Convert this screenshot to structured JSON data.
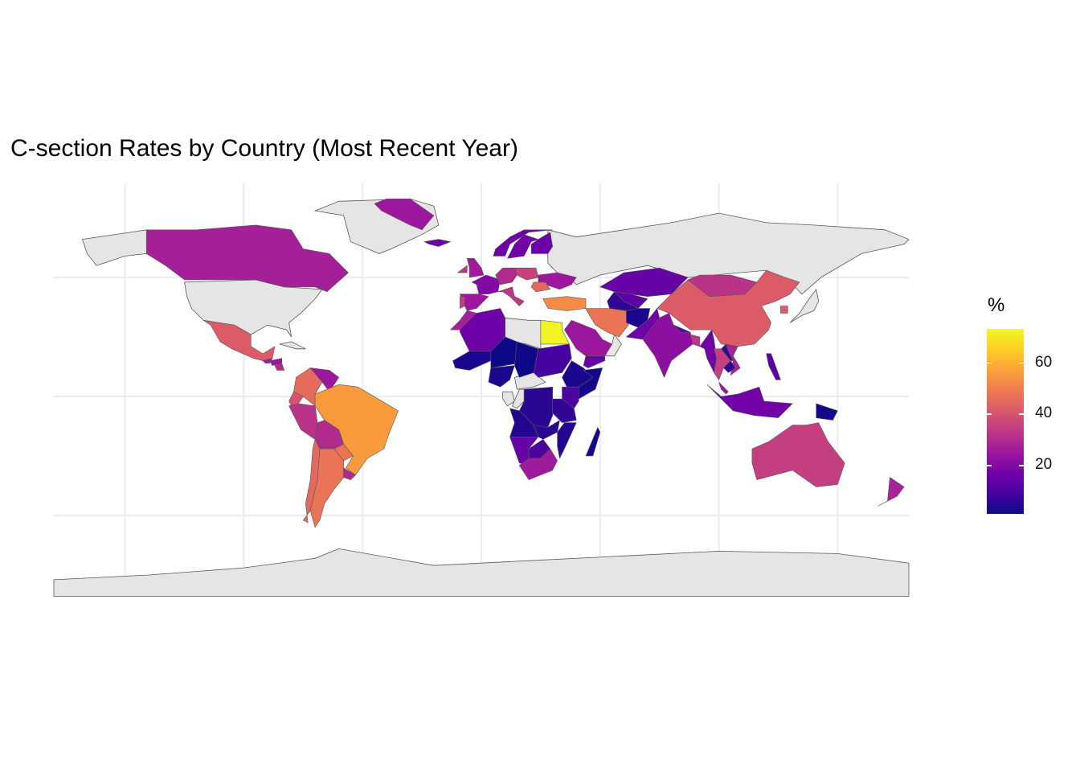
{
  "title": "C-section Rates by Country (Most Recent Year)",
  "legend": {
    "title": "%",
    "min": 1,
    "max": 73,
    "breaks": [
      20,
      40,
      60
    ],
    "break_labels": [
      "20",
      "40",
      "60"
    ],
    "colors": [
      "#0d0887",
      "#46039f",
      "#7201a8",
      "#9c179e",
      "#bd3786",
      "#d8576b",
      "#ed7953",
      "#fb9f3a",
      "#fdca26",
      "#f0f921"
    ]
  },
  "chart_data": {
    "type": "heatmap",
    "subtype": "choropleth-world-map",
    "title": "C-section Rates by Country (Most Recent Year)",
    "fill_label": "%",
    "projection": "equirectangular",
    "no_data_color": "#e5e5e5",
    "border_color": "#595959",
    "panel_grid": true,
    "legend_position": "right",
    "values_by_country": [
      {
        "country": "Canada",
        "value": 27
      },
      {
        "country": "Mexico",
        "value": 42
      },
      {
        "country": "Guatemala",
        "value": 26
      },
      {
        "country": "Honduras",
        "value": 24
      },
      {
        "country": "Nicaragua",
        "value": 30
      },
      {
        "country": "Colombia",
        "value": 46
      },
      {
        "country": "Venezuela",
        "value": 25
      },
      {
        "country": "Ecuador",
        "value": 40
      },
      {
        "country": "Peru",
        "value": 32
      },
      {
        "country": "Brazil",
        "value": 56
      },
      {
        "country": "Bolivia",
        "value": 30
      },
      {
        "country": "Chile",
        "value": 45
      },
      {
        "country": "Argentina",
        "value": 48
      },
      {
        "country": "Paraguay",
        "value": 48
      },
      {
        "country": "Uruguay",
        "value": 30
      },
      {
        "country": "Greenland",
        "value": 25
      },
      {
        "country": "Iceland",
        "value": 15
      },
      {
        "country": "Ireland",
        "value": 33
      },
      {
        "country": "United Kingdom",
        "value": 26
      },
      {
        "country": "Norway",
        "value": 16
      },
      {
        "country": "Sweden",
        "value": 17
      },
      {
        "country": "Finland",
        "value": 16
      },
      {
        "country": "France",
        "value": 20
      },
      {
        "country": "Spain",
        "value": 25
      },
      {
        "country": "Portugal",
        "value": 35
      },
      {
        "country": "Italy",
        "value": 33
      },
      {
        "country": "Germany",
        "value": 30
      },
      {
        "country": "Poland",
        "value": 36
      },
      {
        "country": "Ukraine",
        "value": 25
      },
      {
        "country": "Romania",
        "value": 45
      },
      {
        "country": "Turkey",
        "value": 53
      },
      {
        "country": "Morocco",
        "value": 27
      },
      {
        "country": "Algeria",
        "value": 16
      },
      {
        "country": "Egypt",
        "value": 72
      },
      {
        "country": "Mali",
        "value": 3
      },
      {
        "country": "Niger",
        "value": 1
      },
      {
        "country": "Chad",
        "value": 1
      },
      {
        "country": "Nigeria",
        "value": 3
      },
      {
        "country": "Sudan",
        "value": 9
      },
      {
        "country": "Ethiopia",
        "value": 3
      },
      {
        "country": "Somalia",
        "value": 2
      },
      {
        "country": "Kenya",
        "value": 10
      },
      {
        "country": "Tanzania",
        "value": 6
      },
      {
        "country": "DR Congo",
        "value": 5
      },
      {
        "country": "Angola",
        "value": 4
      },
      {
        "country": "Zambia",
        "value": 5
      },
      {
        "country": "Mozambique",
        "value": 4
      },
      {
        "country": "Madagascar",
        "value": 2
      },
      {
        "country": "Namibia",
        "value": 15
      },
      {
        "country": "Botswana",
        "value": 10
      },
      {
        "country": "South Africa",
        "value": 26
      },
      {
        "country": "Saudi Arabia",
        "value": 25
      },
      {
        "country": "Yemen",
        "value": 15
      },
      {
        "country": "Iran",
        "value": 48
      },
      {
        "country": "Kazakhstan",
        "value": 15
      },
      {
        "country": "Uzbekistan",
        "value": 13
      },
      {
        "country": "Turkmenistan",
        "value": 6
      },
      {
        "country": "Afghanistan",
        "value": 3
      },
      {
        "country": "Pakistan",
        "value": 16
      },
      {
        "country": "India",
        "value": 22
      },
      {
        "country": "Nepal",
        "value": 10
      },
      {
        "country": "Bangladesh",
        "value": 33
      },
      {
        "country": "Myanmar",
        "value": 17
      },
      {
        "country": "China",
        "value": 42
      },
      {
        "country": "Mongolia",
        "value": 32
      },
      {
        "country": "South Korea",
        "value": 42
      },
      {
        "country": "Thailand",
        "value": 35
      },
      {
        "country": "Vietnam",
        "value": 28
      },
      {
        "country": "Laos",
        "value": 6
      },
      {
        "country": "Cambodia",
        "value": 6
      },
      {
        "country": "Philippines",
        "value": 13
      },
      {
        "country": "Malaysia",
        "value": 25
      },
      {
        "country": "Indonesia",
        "value": 17
      },
      {
        "country": "Papua New Guinea",
        "value": 2
      },
      {
        "country": "Australia",
        "value": 35
      },
      {
        "country": "New Zealand",
        "value": 28
      }
    ],
    "no_data_countries": [
      "United States",
      "Russia",
      "Libya",
      "Central African Republic",
      "Antarctica",
      "Greenland interior islands",
      "Gabon",
      "Congo",
      "Oman",
      "Japan",
      "Cuba"
    ]
  }
}
